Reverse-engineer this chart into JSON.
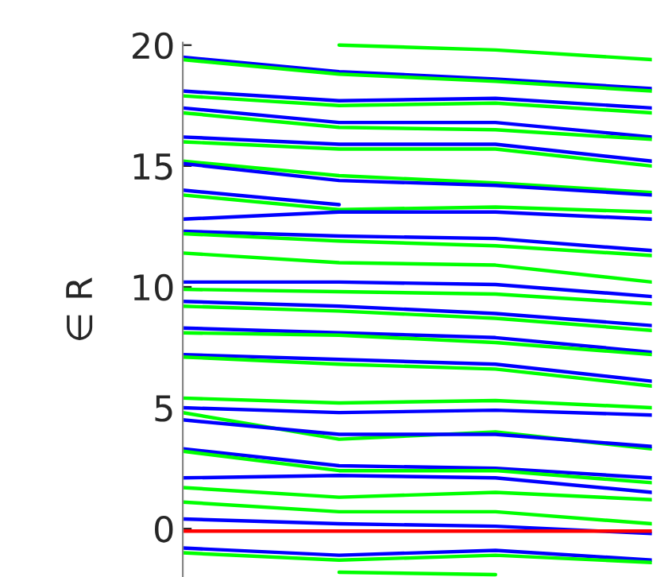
{
  "chart_data": {
    "type": "line",
    "ylabel": "∈ R",
    "categories": [
      null,
      null,
      null,
      null
    ],
    "ylim": [
      -2,
      20.1
    ],
    "yticks": [
      0,
      5,
      10,
      15,
      20
    ],
    "tick_labels": "y",
    "grid": false,
    "legend": false,
    "marker": "none",
    "line_style": "solid",
    "series": [
      {
        "color": "#00ff00",
        "values": [
          null,
          20.0,
          19.8,
          19.4
        ]
      },
      {
        "color": "#0000ff",
        "values": [
          19.5,
          18.9,
          18.6,
          18.2
        ]
      },
      {
        "color": "#00ff00",
        "values": [
          19.4,
          18.8,
          18.5,
          18.1
        ]
      },
      {
        "color": "#0000ff",
        "values": [
          18.1,
          17.7,
          17.8,
          17.4
        ]
      },
      {
        "color": "#00ff00",
        "values": [
          17.9,
          17.5,
          17.6,
          17.2
        ]
      },
      {
        "color": "#0000ff",
        "values": [
          17.4,
          16.8,
          16.8,
          16.2
        ]
      },
      {
        "color": "#00ff00",
        "values": [
          17.2,
          16.6,
          16.5,
          16.1
        ]
      },
      {
        "color": "#0000ff",
        "values": [
          16.2,
          15.9,
          15.9,
          15.2
        ]
      },
      {
        "color": "#00ff00",
        "values": [
          16.0,
          15.7,
          15.7,
          15.0
        ]
      },
      {
        "color": "#00ff00",
        "values": [
          15.2,
          14.6,
          14.3,
          13.9
        ]
      },
      {
        "color": "#0000ff",
        "values": [
          15.1,
          14.4,
          14.2,
          13.8
        ]
      },
      {
        "color": "#0000ff",
        "values": [
          14.0,
          13.4,
          null,
          null
        ]
      },
      {
        "color": "#00ff00",
        "values": [
          13.8,
          13.2,
          13.3,
          13.1
        ]
      },
      {
        "color": "#0000ff",
        "values": [
          12.8,
          13.1,
          13.1,
          12.8
        ]
      },
      {
        "color": "#0000ff",
        "values": [
          12.3,
          12.1,
          12.0,
          11.5
        ]
      },
      {
        "color": "#00ff00",
        "values": [
          12.2,
          11.9,
          11.7,
          11.3
        ]
      },
      {
        "color": "#00ff00",
        "values": [
          11.4,
          11.0,
          10.9,
          10.2
        ]
      },
      {
        "color": "#0000ff",
        "values": [
          10.2,
          10.2,
          10.1,
          9.6
        ]
      },
      {
        "color": "#00ff00",
        "values": [
          9.9,
          9.8,
          9.7,
          9.3
        ]
      },
      {
        "color": "#0000ff",
        "values": [
          9.4,
          9.2,
          8.9,
          8.4
        ]
      },
      {
        "color": "#00ff00",
        "values": [
          9.2,
          9.0,
          8.7,
          8.2
        ]
      },
      {
        "color": "#0000ff",
        "values": [
          8.3,
          8.1,
          7.9,
          7.3
        ]
      },
      {
        "color": "#00ff00",
        "values": [
          8.1,
          8.0,
          7.7,
          7.2
        ]
      },
      {
        "color": "#0000ff",
        "values": [
          7.2,
          7.0,
          6.8,
          6.1
        ]
      },
      {
        "color": "#00ff00",
        "values": [
          7.1,
          6.8,
          6.6,
          5.9
        ]
      },
      {
        "color": "#00ff00",
        "values": [
          5.4,
          5.2,
          5.3,
          5.0
        ]
      },
      {
        "color": "#0000ff",
        "values": [
          5.0,
          4.8,
          4.9,
          4.7
        ]
      },
      {
        "color": "#00ff00",
        "values": [
          4.8,
          3.7,
          4.0,
          3.3
        ]
      },
      {
        "color": "#0000ff",
        "values": [
          4.5,
          3.9,
          3.9,
          3.4
        ]
      },
      {
        "color": "#0000ff",
        "values": [
          3.3,
          2.6,
          2.5,
          2.1
        ]
      },
      {
        "color": "#00ff00",
        "values": [
          3.2,
          2.4,
          2.4,
          1.9
        ]
      },
      {
        "color": "#0000ff",
        "values": [
          2.1,
          2.2,
          2.1,
          1.5
        ]
      },
      {
        "color": "#00ff00",
        "values": [
          1.7,
          1.3,
          1.5,
          1.2
        ]
      },
      {
        "color": "#00ff00",
        "values": [
          1.1,
          0.7,
          0.7,
          0.2
        ]
      },
      {
        "color": "#0000ff",
        "values": [
          0.4,
          0.2,
          0.1,
          -0.2
        ]
      },
      {
        "color": "#ff0000",
        "values": [
          -0.1,
          -0.1,
          -0.1,
          -0.1
        ]
      },
      {
        "color": "#0000ff",
        "values": [
          -0.8,
          -1.1,
          -0.9,
          -1.3
        ]
      },
      {
        "color": "#00ff00",
        "values": [
          -1.0,
          -1.3,
          -1.1,
          -1.4
        ]
      },
      {
        "color": "#00ff00",
        "values": [
          null,
          -1.8,
          -1.9,
          null
        ]
      }
    ]
  }
}
